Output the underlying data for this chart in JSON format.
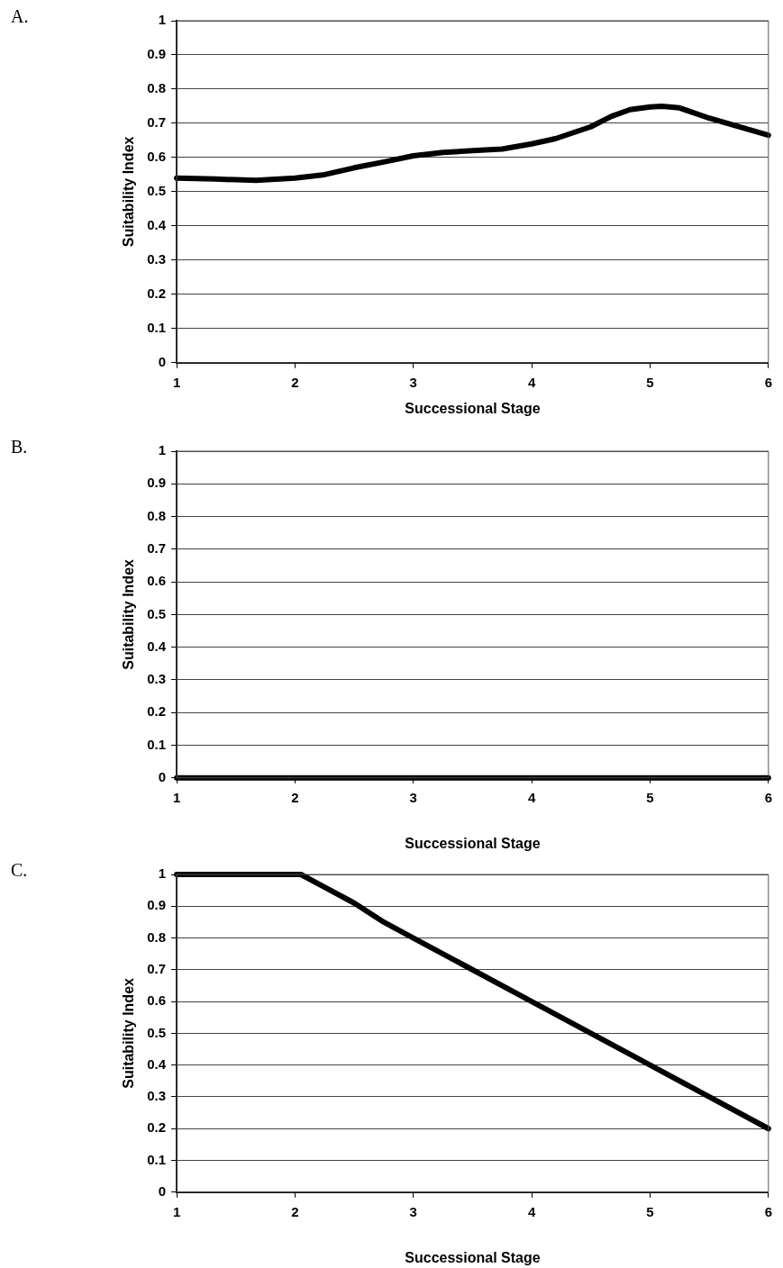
{
  "chart_data": [
    {
      "type": "line",
      "annotations": [
        "A."
      ],
      "xlabel": "Successional Stage",
      "ylabel": "Suitability Index",
      "xlim": [
        1,
        6
      ],
      "xticks": [
        1,
        2,
        3,
        4,
        5,
        6
      ],
      "ylim": [
        0,
        1
      ],
      "yticks": [
        0,
        0.1,
        0.2,
        0.3,
        0.4,
        0.5,
        0.6,
        0.7,
        0.8,
        0.9,
        1
      ],
      "grid": "y",
      "legend": false,
      "marker": "none",
      "line_style": "solid",
      "series": [
        {
          "color": "#000000",
          "x": [
            1,
            1.33,
            1.67,
            2,
            2.25,
            2.5,
            2.75,
            3,
            3.25,
            3.5,
            3.75,
            4,
            4.2,
            4.5,
            4.67,
            4.83,
            5,
            5.1,
            5.25,
            5.5,
            5.75,
            6
          ],
          "values": [
            0.54,
            0.537,
            0.533,
            0.54,
            0.55,
            0.57,
            0.587,
            0.605,
            0.615,
            0.62,
            0.625,
            0.64,
            0.655,
            0.69,
            0.72,
            0.74,
            0.748,
            0.75,
            0.745,
            0.715,
            0.69,
            0.665
          ]
        }
      ]
    },
    {
      "type": "line",
      "annotations": [
        "B."
      ],
      "xlabel": "Successional Stage",
      "ylabel": "Suitability Index",
      "xlim": [
        1,
        6
      ],
      "xticks": [
        1,
        2,
        3,
        4,
        5,
        6
      ],
      "ylim": [
        0,
        1
      ],
      "yticks": [
        0,
        0.1,
        0.2,
        0.3,
        0.4,
        0.5,
        0.6,
        0.7,
        0.8,
        0.9,
        1
      ],
      "grid": "y",
      "legend": false,
      "marker": "none",
      "line_style": "solid",
      "series": [
        {
          "color": "#000000",
          "x": [
            1,
            2,
            3,
            4,
            5,
            6
          ],
          "values": [
            0,
            0,
            0,
            0,
            0,
            0
          ]
        }
      ]
    },
    {
      "type": "line",
      "annotations": [
        "C."
      ],
      "xlabel": "Successional Stage",
      "ylabel": "Suitability Index",
      "xlim": [
        1,
        6
      ],
      "xticks": [
        1,
        2,
        3,
        4,
        5,
        6
      ],
      "ylim": [
        0,
        1
      ],
      "yticks": [
        0,
        0.1,
        0.2,
        0.3,
        0.4,
        0.5,
        0.6,
        0.7,
        0.8,
        0.9,
        1
      ],
      "grid": "y",
      "legend": false,
      "marker": "none",
      "line_style": "solid",
      "series": [
        {
          "color": "#000000",
          "x": [
            1,
            2,
            2.05,
            2.25,
            2.5,
            2.75,
            3,
            4,
            4.5,
            5,
            6
          ],
          "values": [
            1,
            1,
            1,
            0.96,
            0.91,
            0.85,
            0.8,
            0.6,
            0.5,
            0.4,
            0.2
          ]
        }
      ]
    }
  ]
}
